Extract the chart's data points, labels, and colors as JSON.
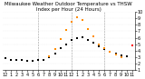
{
  "title": "Milwaukee Weather Outdoor Temperature vs THSW Index per Hour (24 Hours)",
  "hours": [
    0,
    1,
    2,
    3,
    4,
    5,
    6,
    7,
    8,
    9,
    10,
    11,
    12,
    13,
    14,
    15,
    16,
    17,
    18,
    19,
    20,
    21,
    22,
    23
  ],
  "temp_f": [
    28,
    26,
    25,
    25,
    24,
    24,
    25,
    26,
    30,
    36,
    44,
    50,
    56,
    60,
    61,
    57,
    53,
    47,
    42,
    38,
    35,
    33,
    32,
    48
  ],
  "thsw": [
    null,
    null,
    null,
    null,
    null,
    null,
    null,
    null,
    32,
    42,
    58,
    72,
    85,
    92,
    87,
    74,
    62,
    50,
    44,
    38,
    34,
    30,
    null,
    null
  ],
  "temp_color": "#000000",
  "thsw_color": "#FF8C00",
  "background_color": "#ffffff",
  "grid_color": "#999999",
  "ylim": [
    10,
    100
  ],
  "ytick_vals": [
    10,
    20,
    30,
    40,
    50,
    60,
    70,
    80,
    90,
    100
  ],
  "ytick_labels": [
    "1",
    "2",
    "3",
    "4",
    "5",
    "6",
    "7",
    "8",
    "9",
    "10"
  ],
  "vline_hours": [
    6,
    12,
    18
  ],
  "xtick_positions": [
    0,
    1,
    2,
    3,
    4,
    5,
    6,
    7,
    8,
    9,
    10,
    11,
    12,
    13,
    14,
    15,
    16,
    17,
    18,
    19,
    20,
    21,
    22,
    23
  ],
  "xtick_labels": [
    "12",
    "1",
    "2",
    "3",
    "4",
    "5",
    "6",
    "7",
    "8",
    "9",
    "10",
    "11",
    "12",
    "1",
    "2",
    "3",
    "4",
    "5",
    "6",
    "7",
    "8",
    "9",
    "10",
    "11"
  ],
  "title_fontsize": 4.0,
  "tick_fontsize": 3.5,
  "marker_size": 1.2,
  "red_dot_hour": 23,
  "red_dot_color": "#FF0000"
}
